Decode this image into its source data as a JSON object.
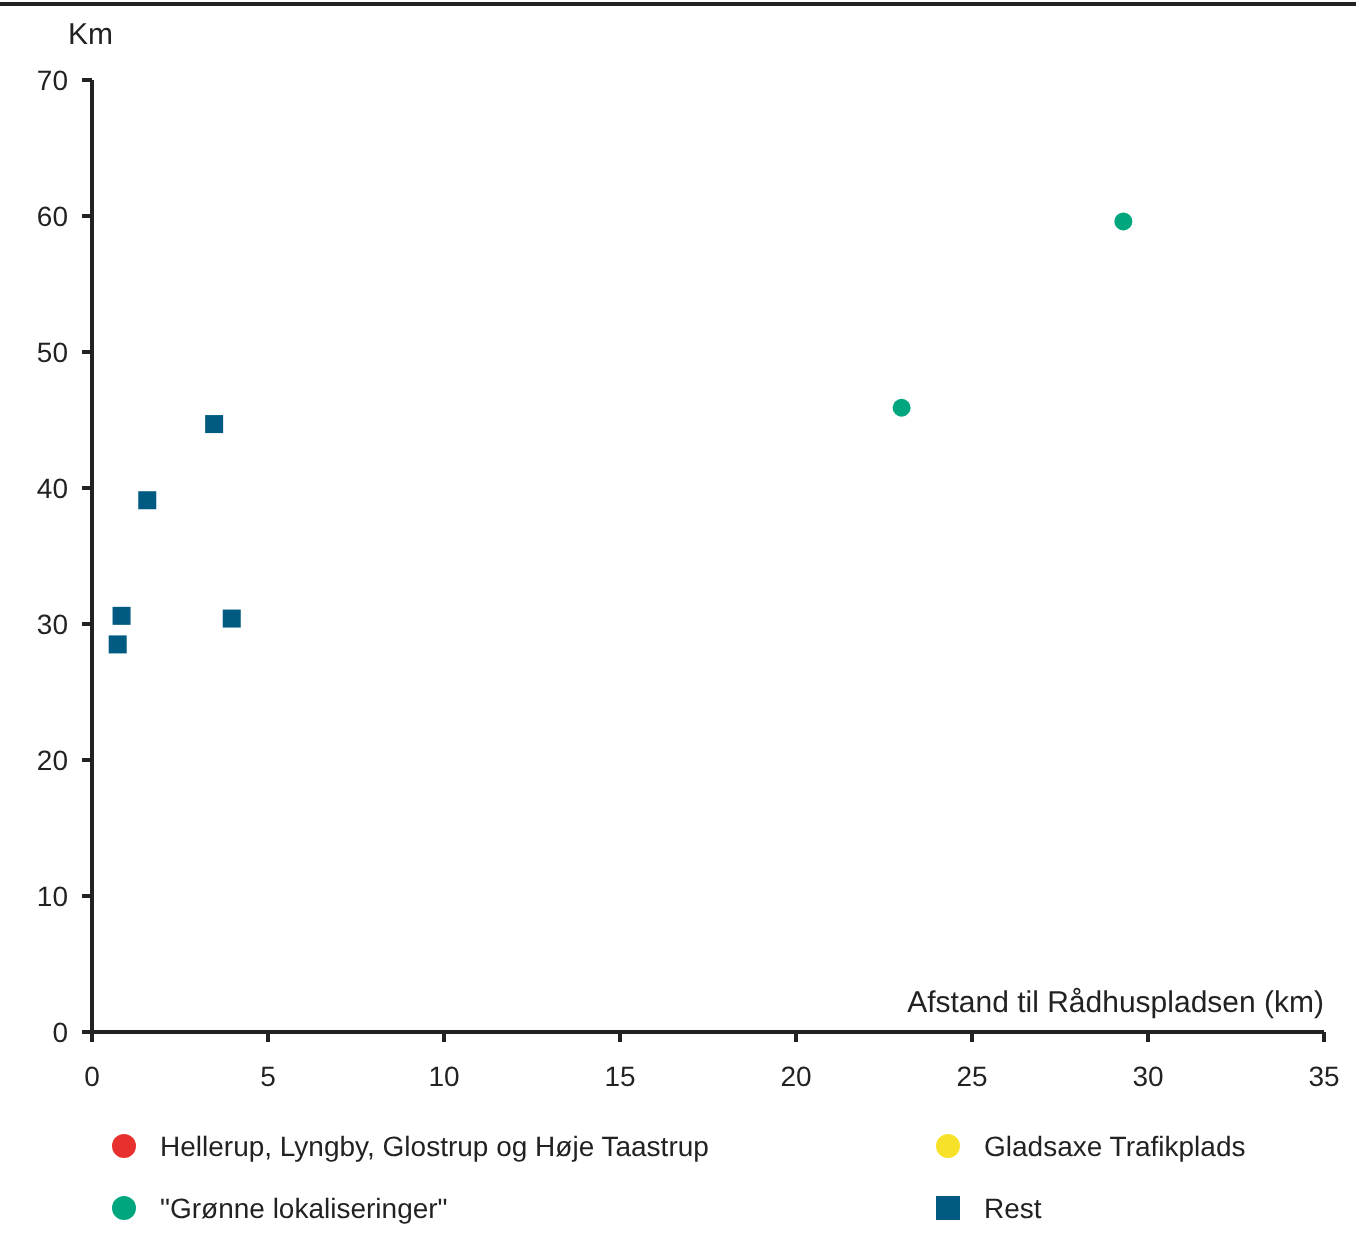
{
  "chart_data": {
    "type": "scatter",
    "xlabel": "Afstand til Rådhuspladsen (km)",
    "ylabel": "Km",
    "xlim": [
      0,
      35
    ],
    "xticks": [
      0,
      5,
      10,
      15,
      20,
      25,
      30,
      35
    ],
    "ylim": [
      0,
      70
    ],
    "yticks": [
      0,
      10,
      20,
      30,
      40,
      50,
      60,
      70
    ],
    "grid": false,
    "legend": "bottom",
    "series": [
      {
        "name": "Hellerup, Lyngby, Glostrup og Høje Taastrup",
        "color": "#e8312f",
        "marker": "circle"
      },
      {
        "name": "Gladsaxe Trafikplads",
        "color": "#f7e229",
        "marker": "circle"
      },
      {
        "name": "\"Grønne lokaliseringer\"",
        "color": "#00a67e",
        "marker": "circle",
        "x": [
          23,
          29.3
        ],
        "values": [
          45.9,
          59.6
        ]
      },
      {
        "name": "Rest",
        "color": "#005a82",
        "marker": "square",
        "x": [
          0.84,
          0.73,
          1.57,
          3.47,
          3.97
        ],
        "values": [
          30.6,
          28.5,
          39.1,
          44.7,
          30.4
        ]
      }
    ]
  }
}
